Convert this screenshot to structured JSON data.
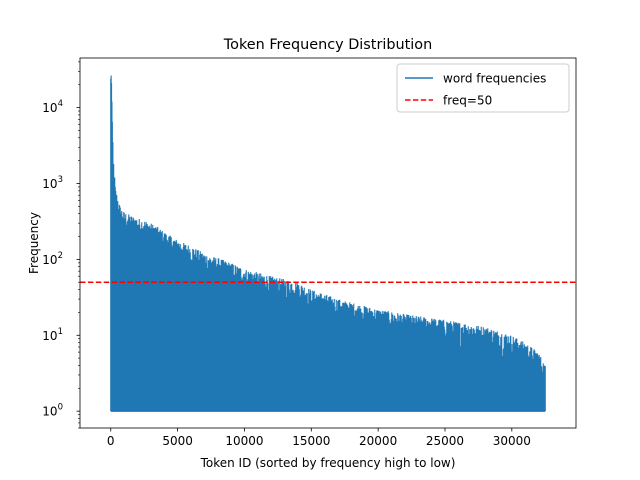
{
  "chart_data": {
    "type": "line",
    "title": "Token Frequency Distribution",
    "xlabel": "Token ID (sorted by frequency high to low)",
    "ylabel": "Frequency",
    "yscale": "log",
    "xlim": [
      -2300,
      34800
    ],
    "ylim": [
      0.6,
      45000
    ],
    "xticks": [
      0,
      5000,
      10000,
      15000,
      20000,
      25000,
      30000
    ],
    "xtick_labels": [
      "0",
      "5000",
      "10000",
      "15000",
      "20000",
      "25000",
      "30000"
    ],
    "yticks": [
      1,
      10,
      100,
      1000,
      10000
    ],
    "ytick_labels": [
      {
        "base": "10",
        "exp": "0"
      },
      {
        "base": "10",
        "exp": "1"
      },
      {
        "base": "10",
        "exp": "2"
      },
      {
        "base": "10",
        "exp": "3"
      },
      {
        "base": "10",
        "exp": "4"
      }
    ],
    "grid": false,
    "legend_position": "top-right",
    "series": [
      {
        "name": "word frequencies",
        "color": "#1f77b4",
        "style": "solid",
        "x_range": [
          0,
          32500
        ],
        "y_min": 1,
        "upper_envelope": {
          "x": [
            0,
            50,
            100,
            200,
            400,
            700,
            1000,
            1500,
            2000,
            2500,
            3000,
            3500,
            4000,
            5000,
            6000,
            7000,
            7500,
            8000,
            9000,
            10000,
            12000,
            14000,
            15000,
            16000,
            17000,
            18000,
            20000,
            22000,
            25000,
            28000,
            30000,
            31000,
            32000,
            32500
          ],
          "y": [
            26000,
            22000,
            7000,
            1300,
            800,
            500,
            420,
            380,
            350,
            330,
            300,
            270,
            230,
            180,
            150,
            120,
            110,
            105,
            90,
            75,
            60,
            50,
            40,
            35,
            30,
            27,
            22,
            19,
            16,
            13,
            10,
            8,
            6,
            4
          ]
        }
      },
      {
        "name": "freq=50",
        "color": "#ff0000",
        "style": "dashed",
        "y": 50
      }
    ]
  }
}
